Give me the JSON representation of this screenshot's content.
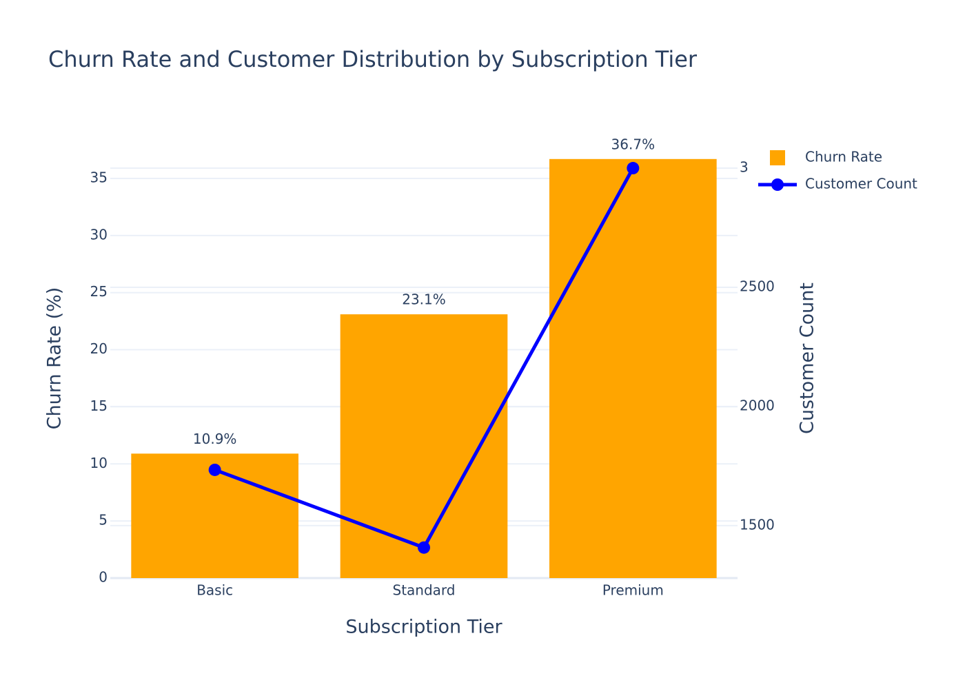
{
  "chart_data": {
    "type": "bar",
    "title": "Churn Rate and Customer Distribution by Subscription Tier",
    "x_title": "Subscription Tier",
    "y_title": "Churn Rate (%)",
    "y2_title": "Customer Count",
    "categories": [
      "Basic",
      "Standard",
      "Premium"
    ],
    "series": [
      {
        "name": "Churn Rate",
        "type": "bar",
        "color": "#FFA500",
        "values": [
          10.9,
          23.1,
          36.7
        ],
        "value_labels": [
          "10.9%",
          "23.1%",
          "36.7%"
        ]
      },
      {
        "name": "Customer Count",
        "type": "line",
        "axis": "y2",
        "color": "#0000FF",
        "values": [
          1734,
          1408,
          3000
        ]
      }
    ],
    "ylim": [
      0,
      37.05
    ],
    "yticks": [
      0,
      5,
      10,
      15,
      20,
      25,
      30,
      35
    ],
    "y2lim": [
      1280,
      3055
    ],
    "y2ticks": [
      1500,
      2000,
      2500,
      {
        "value": 3000,
        "label": "3"
      }
    ],
    "grid": true,
    "legend": "top-right"
  }
}
